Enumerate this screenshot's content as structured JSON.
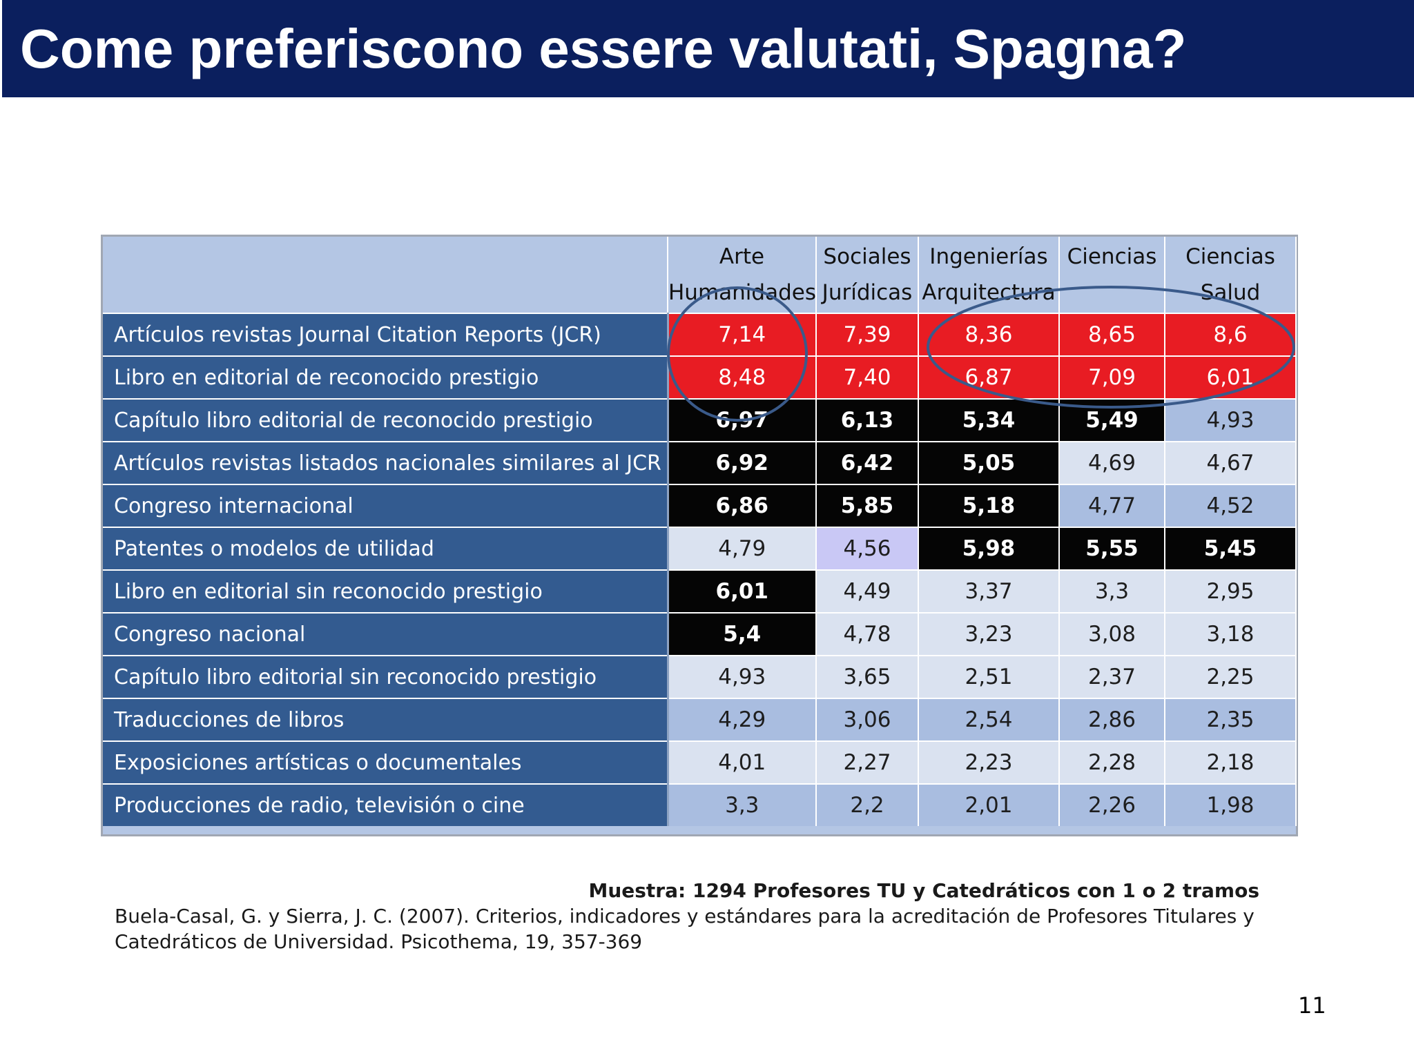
{
  "title": "Come preferiscono essere valutati, Spagna?",
  "table": {
    "headers": [
      {
        "line1": "Arte",
        "line2": "Humanidades"
      },
      {
        "line1": "Sociales",
        "line2": "Jurídicas"
      },
      {
        "line1": "Ingenierías",
        "line2": "Arquitectura"
      },
      {
        "line1": "Ciencias",
        "line2": ""
      },
      {
        "line1": "Ciencias",
        "line2": "Salud"
      }
    ],
    "rows": [
      {
        "label": "Artículos revistas Journal Citation Reports (JCR)",
        "values": [
          "7,14",
          "7,39",
          "8,36",
          "8,65",
          "8,6"
        ],
        "styles": [
          "red",
          "red",
          "red",
          "red",
          "red"
        ]
      },
      {
        "label": "Libro en editorial de reconocido prestigio",
        "values": [
          "8,48",
          "7,40",
          "6,87",
          "7,09",
          "6,01"
        ],
        "styles": [
          "red",
          "red",
          "red",
          "red",
          "red"
        ]
      },
      {
        "label": "Capítulo libro editorial de reconocido prestigio",
        "values": [
          "6,97",
          "6,13",
          "5,34",
          "5,49",
          "4,93"
        ],
        "styles": [
          "black",
          "black",
          "black",
          "black",
          "mid"
        ]
      },
      {
        "label": "Artículos revistas listados nacionales similares al JCR",
        "values": [
          "6,92",
          "6,42",
          "5,05",
          "4,69",
          "4,67"
        ],
        "styles": [
          "black",
          "black",
          "black",
          "light",
          "light"
        ]
      },
      {
        "label": "Congreso internacional",
        "values": [
          "6,86",
          "5,85",
          "5,18",
          "4,77",
          "4,52"
        ],
        "styles": [
          "black",
          "black",
          "black",
          "mid",
          "mid"
        ]
      },
      {
        "label": "Patentes o modelos de utilidad",
        "values": [
          "4,79",
          "4,56",
          "5,98",
          "5,55",
          "5,45"
        ],
        "styles": [
          "light",
          "lav",
          "black",
          "black",
          "black"
        ]
      },
      {
        "label": "Libro en editorial sin reconocido prestigio",
        "values": [
          "6,01",
          "4,49",
          "3,37",
          "3,3",
          "2,95"
        ],
        "styles": [
          "black",
          "light",
          "light",
          "light",
          "light"
        ]
      },
      {
        "label": "Congreso nacional",
        "values": [
          "5,4",
          "4,78",
          "3,23",
          "3,08",
          "3,18"
        ],
        "styles": [
          "black",
          "light",
          "light",
          "light",
          "light"
        ]
      },
      {
        "label": "Capítulo libro editorial sin reconocido prestigio",
        "values": [
          "4,93",
          "3,65",
          "2,51",
          "2,37",
          "2,25"
        ],
        "styles": [
          "light",
          "light",
          "light",
          "light",
          "light"
        ]
      },
      {
        "label": " Traducciones de libros",
        "values": [
          "4,29",
          "3,06",
          "2,54",
          "2,86",
          "2,35"
        ],
        "styles": [
          "mid",
          "mid",
          "mid",
          "mid",
          "mid"
        ]
      },
      {
        "label": "Exposiciones artísticas o documentales",
        "values": [
          "4,01",
          "2,27",
          "2,23",
          "2,28",
          "2,18"
        ],
        "styles": [
          "light",
          "light",
          "light",
          "light",
          "light"
        ]
      },
      {
        "label": "Producciones de radio, televisión o cine",
        "values": [
          "3,3",
          "2,2",
          "2,01",
          "2,26",
          "1,98"
        ],
        "styles": [
          "mid",
          "mid",
          "mid",
          "mid",
          "mid"
        ]
      }
    ]
  },
  "caption": {
    "sample": "Muestra: 1294 Profesores TU y Catedráticos  con 1 o 2 tramos",
    "citation_line1": "Buela-Casal, G. y Sierra, J. C. (2007). Criterios, indicadores y estándares para la acreditación de Profesores Titulares y",
    "citation_line2": "Catedráticos de Universidad. Psicothema, 19, 357-369"
  },
  "page_number": "11",
  "colors": {
    "title_bar": "#0b1f5e",
    "row_label_bg": "#335b90",
    "red": "#e81c23",
    "black": "#050505",
    "light": "#dae2f0",
    "mid": "#a9bde0",
    "lavender": "#c9c8f5",
    "circle_stroke": "#3a5a8a"
  }
}
